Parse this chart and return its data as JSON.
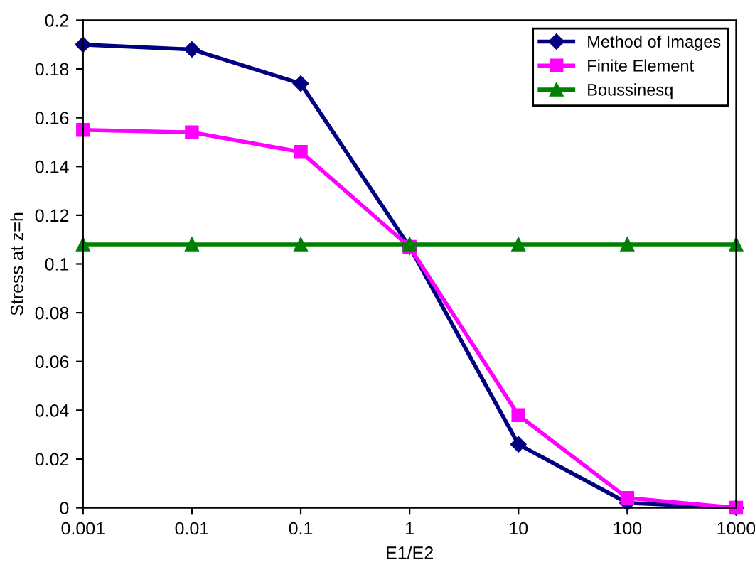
{
  "chart_data": {
    "type": "line",
    "xlabel": "E1/E2",
    "ylabel": "Stress at z=h",
    "log": "x",
    "x": [
      0.001,
      0.01,
      0.1,
      1,
      10,
      100,
      1000
    ],
    "series": [
      {
        "name": "Method of Images",
        "color": "#000080",
        "marker": "diamond",
        "values": [
          0.19,
          0.188,
          0.174,
          0.107,
          0.026,
          0.002,
          0
        ]
      },
      {
        "name": "Finite Element",
        "color": "#ff00ff",
        "marker": "square",
        "values": [
          0.155,
          0.154,
          0.146,
          0.107,
          0.038,
          0.004,
          0
        ]
      },
      {
        "name": "Boussinesq",
        "color": "#008000",
        "marker": "triangle",
        "values": [
          0.108,
          0.108,
          0.108,
          0.108,
          0.108,
          0.108,
          0.108
        ]
      }
    ],
    "xlim": [
      0.001,
      1000
    ],
    "xticks": [
      0.001,
      0.01,
      0.1,
      1,
      10,
      100,
      1000
    ],
    "ylim": [
      0,
      0.2
    ],
    "yticks": [
      0,
      0.02,
      0.04,
      0.06,
      0.08,
      0.1,
      0.12,
      0.14,
      0.16,
      0.18,
      0.2
    ],
    "grid": false,
    "legend": "top right",
    "line_style": "solid"
  }
}
